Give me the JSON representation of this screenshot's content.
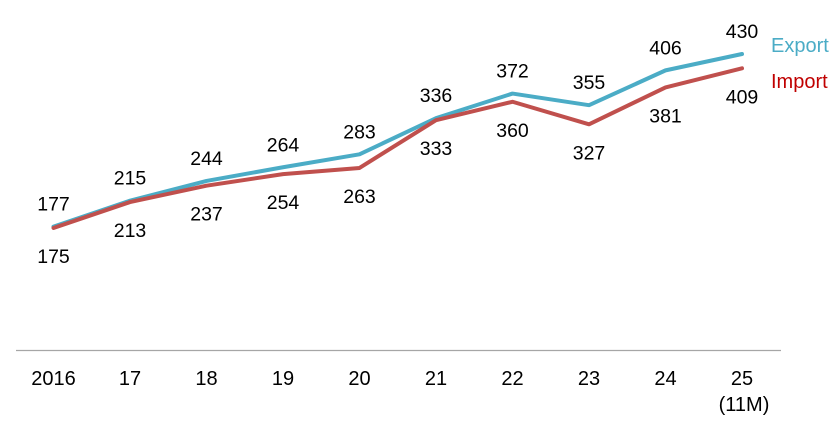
{
  "chart_data": {
    "type": "line",
    "title": "",
    "xlabel": "",
    "ylabel": "",
    "grid": false,
    "y_axis_visible": false,
    "legend_position": "right",
    "categories": [
      "2016",
      "17",
      "18",
      "19",
      "20",
      "21",
      "22",
      "23",
      "24",
      "25"
    ],
    "last_category_note": "(11M)",
    "value_range": [
      175,
      430
    ],
    "series": [
      {
        "name": "Export",
        "values": [
          177,
          215,
          244,
          264,
          283,
          336,
          372,
          355,
          406,
          430
        ],
        "line_color": "#4BACC6",
        "legend_color": "#4BACC6",
        "label_position": "above"
      },
      {
        "name": "Import",
        "values": [
          175,
          213,
          237,
          254,
          263,
          333,
          360,
          327,
          381,
          409
        ],
        "line_color": "#C0504D",
        "legend_color": "#C00000",
        "label_position": "below"
      }
    ]
  },
  "axis": {
    "line_color": "#A6A6A6",
    "label_color": "#000000"
  },
  "labels": {
    "data_label_color": "#000000"
  }
}
